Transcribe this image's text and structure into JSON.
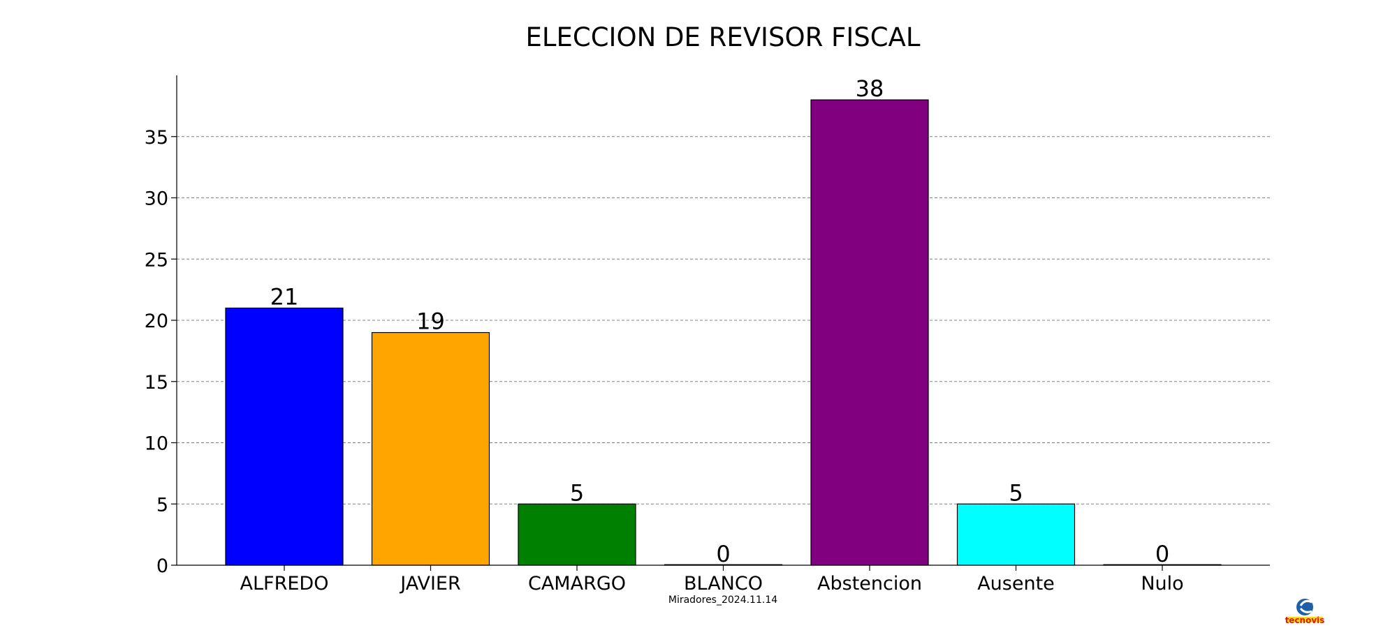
{
  "chart_data": {
    "type": "bar",
    "title": "ELECCION DE REVISOR FISCAL",
    "xlabel": "",
    "ylabel": "",
    "categories": [
      "ALFREDO",
      "JAVIER",
      "CAMARGO",
      "BLANCO",
      "Abstencion",
      "Ausente",
      "Nulo"
    ],
    "values": [
      21,
      19,
      5,
      0,
      38,
      5,
      0
    ],
    "colors": [
      "#0000ff",
      "#ffa500",
      "#008000",
      "#ffffff",
      "#800080",
      "#00ffff",
      "#ffffff"
    ],
    "data_labels": [
      "21",
      "19",
      "5",
      "0",
      "38",
      "5",
      "0"
    ],
    "ylim": [
      0,
      40
    ],
    "yticks": [
      0,
      5,
      10,
      15,
      20,
      25,
      30,
      35
    ],
    "grid": "horizontal dashed",
    "caption": "Miradores_2024.11.14"
  },
  "logo": {
    "icon": "tecnovis-logo-icon",
    "text": "tecnovis"
  }
}
